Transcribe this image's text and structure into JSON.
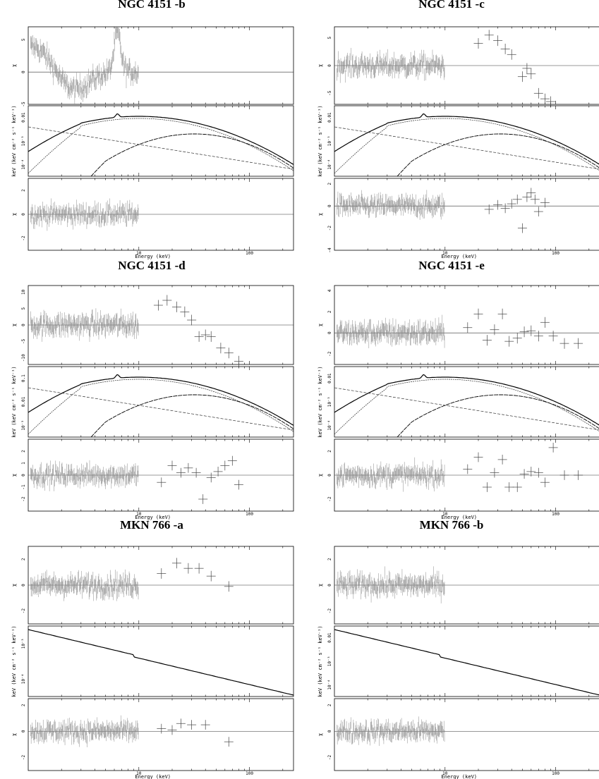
{
  "titles": [
    "NGC 4151 -b",
    "NGC 4151 -c",
    "NGC 4151 -d",
    "NGC 4151 -e",
    "MKN 766 -a",
    "MKN 766 -b"
  ],
  "xlabel": "Energy (keV)",
  "ylabel_top": "χ",
  "ylabel_mid": "keV (keV cm⁻² s⁻¹ keV⁻¹)",
  "ylabel_bot": "χ",
  "chart_data": [
    {
      "type": "scatter",
      "title": "NGC 4151 -b",
      "xscale": "log",
      "x_ticks": [
        "10",
        "100"
      ],
      "panels": [
        {
          "role": "residuals-top",
          "ylim": [
            -5,
            7
          ],
          "yticks": [
            "5",
            "0",
            "-5"
          ],
          "x_range": [
            2,
            10
          ],
          "shape": "excess-peak-6.4keV"
        },
        {
          "role": "model",
          "type": "line",
          "yscale": "log",
          "yticks": [
            "0.01",
            "10⁻³",
            "10⁻⁴"
          ],
          "components": 4
        },
        {
          "role": "residuals-bottom",
          "ylim": [
            -3,
            3
          ],
          "yticks": [
            "2",
            "0",
            "-2"
          ],
          "x_range": [
            2,
            10
          ]
        }
      ]
    },
    {
      "type": "scatter",
      "title": "NGC 4151 -c",
      "xscale": "log",
      "x_ticks": [
        "10",
        "100"
      ],
      "panels": [
        {
          "role": "residuals-top",
          "ylim": [
            -7,
            7
          ],
          "yticks": [
            "5",
            "0",
            "-5"
          ],
          "pds_x": [
            20,
            25,
            30,
            35,
            40,
            50,
            55,
            60,
            70,
            80,
            90
          ],
          "pds_y": [
            4,
            5.5,
            4.5,
            3,
            2,
            -2,
            -0.5,
            -1.5,
            -5,
            -6,
            -6.5
          ]
        },
        {
          "role": "model",
          "type": "line",
          "yscale": "log",
          "yticks": [
            "0.01",
            "10⁻³",
            "10⁻⁴"
          ],
          "components": 4
        },
        {
          "role": "residuals-bottom",
          "ylim": [
            -4,
            2.5
          ],
          "yticks": [
            "2",
            "0",
            "-2",
            "-4"
          ],
          "pds_x": [
            25,
            30,
            35,
            40,
            45,
            50,
            55,
            60,
            65,
            70,
            80
          ],
          "pds_y": [
            -0.3,
            0.1,
            -0.2,
            0.2,
            0.6,
            -2,
            0.8,
            1.2,
            0.6,
            -0.5,
            0.3
          ]
        }
      ]
    },
    {
      "type": "scatter",
      "title": "NGC 4151 -d",
      "xscale": "log",
      "x_ticks": [
        "10",
        "100"
      ],
      "panels": [
        {
          "role": "residuals-top",
          "ylim": [
            -12,
            12
          ],
          "yticks": [
            "10",
            "5",
            "0",
            "-5",
            "-10"
          ],
          "pds_x": [
            15,
            18,
            22,
            26,
            30,
            35,
            40,
            45,
            55,
            65,
            80
          ],
          "pds_y": [
            6,
            7.5,
            5.5,
            4,
            1.5,
            -3.5,
            -3,
            -3.5,
            -7,
            -8.5,
            -11
          ]
        },
        {
          "role": "model",
          "type": "line",
          "yscale": "log",
          "yticks": [
            "0.1",
            "0.01",
            "10⁻³"
          ],
          "components": 4
        },
        {
          "role": "residuals-bottom",
          "ylim": [
            -3,
            3
          ],
          "yticks": [
            "2",
            "1",
            "0",
            "-1",
            "-2"
          ],
          "pds_x": [
            16,
            20,
            24,
            28,
            33,
            38,
            45,
            52,
            60,
            70,
            80
          ],
          "pds_y": [
            -0.6,
            0.8,
            0.2,
            0.6,
            0.2,
            -2,
            -0.2,
            0.3,
            0.8,
            1.2,
            -0.8
          ]
        }
      ]
    },
    {
      "type": "scatter",
      "title": "NGC 4151 -e",
      "xscale": "log",
      "x_ticks": [
        "10",
        "100"
      ],
      "panels": [
        {
          "role": "residuals-top",
          "ylim": [
            -3,
            4.5
          ],
          "yticks": [
            "4",
            "2",
            "0",
            "-2"
          ],
          "pds_x": [
            16,
            20,
            24,
            28,
            33,
            38,
            45,
            52,
            60,
            70,
            80,
            95,
            120,
            160
          ],
          "pds_y": [
            0.5,
            1.8,
            -0.7,
            0.3,
            1.8,
            -0.8,
            -0.5,
            0.1,
            0.2,
            -0.3,
            1,
            -0.3,
            -1,
            -1
          ]
        },
        {
          "role": "model",
          "type": "line",
          "yscale": "log",
          "yticks": [
            "0.01",
            "10⁻³",
            "10⁻⁴"
          ],
          "components": 4
        },
        {
          "role": "residuals-bottom",
          "ylim": [
            -3,
            3
          ],
          "yticks": [
            "2",
            "0",
            "-2"
          ],
          "pds_x": [
            16,
            20,
            24,
            28,
            33,
            38,
            45,
            52,
            60,
            70,
            80,
            95,
            120,
            160
          ],
          "pds_y": [
            0.5,
            1.5,
            -1,
            0.2,
            1.3,
            -1,
            -1,
            0.1,
            0.3,
            0.2,
            -0.6,
            2.3,
            0,
            0
          ]
        }
      ]
    },
    {
      "type": "scatter",
      "title": "MKN 766 -a",
      "xscale": "log",
      "x_ticks": [
        "10",
        "100"
      ],
      "panels": [
        {
          "role": "residuals-top",
          "ylim": [
            -3,
            3
          ],
          "yticks": [
            "2",
            "0",
            "-2"
          ],
          "pds_x": [
            16,
            22,
            28,
            35,
            45,
            65
          ],
          "pds_y": [
            0.9,
            1.7,
            1.3,
            1.3,
            0.7,
            -0.1
          ]
        },
        {
          "role": "model",
          "type": "line",
          "yscale": "log",
          "yticks": [
            "10⁻³",
            "10⁻⁴"
          ],
          "components": 1
        },
        {
          "role": "residuals-bottom",
          "ylim": [
            -3,
            2.5
          ],
          "yticks": [
            "2",
            "0",
            "-2"
          ],
          "pds_x": [
            16,
            20,
            24,
            30,
            40,
            65
          ],
          "pds_y": [
            0.2,
            0.1,
            0.6,
            0.5,
            0.5,
            -0.8
          ]
        }
      ]
    },
    {
      "type": "scatter",
      "title": "MKN 766 -b",
      "xscale": "log",
      "x_ticks": [
        "10",
        "100"
      ],
      "panels": [
        {
          "role": "residuals-top",
          "ylim": [
            -3,
            3
          ],
          "yticks": [
            "2",
            "0",
            "-2"
          ],
          "x_range": [
            2,
            10
          ]
        },
        {
          "role": "model",
          "type": "line",
          "yscale": "log",
          "yticks": [
            "0.01",
            "10⁻³",
            "10⁻⁴"
          ],
          "components": 1
        },
        {
          "role": "residuals-bottom",
          "ylim": [
            -3,
            2.5
          ],
          "yticks": [
            "2",
            "0",
            "-2"
          ],
          "x_range": [
            2,
            10
          ]
        }
      ]
    }
  ]
}
